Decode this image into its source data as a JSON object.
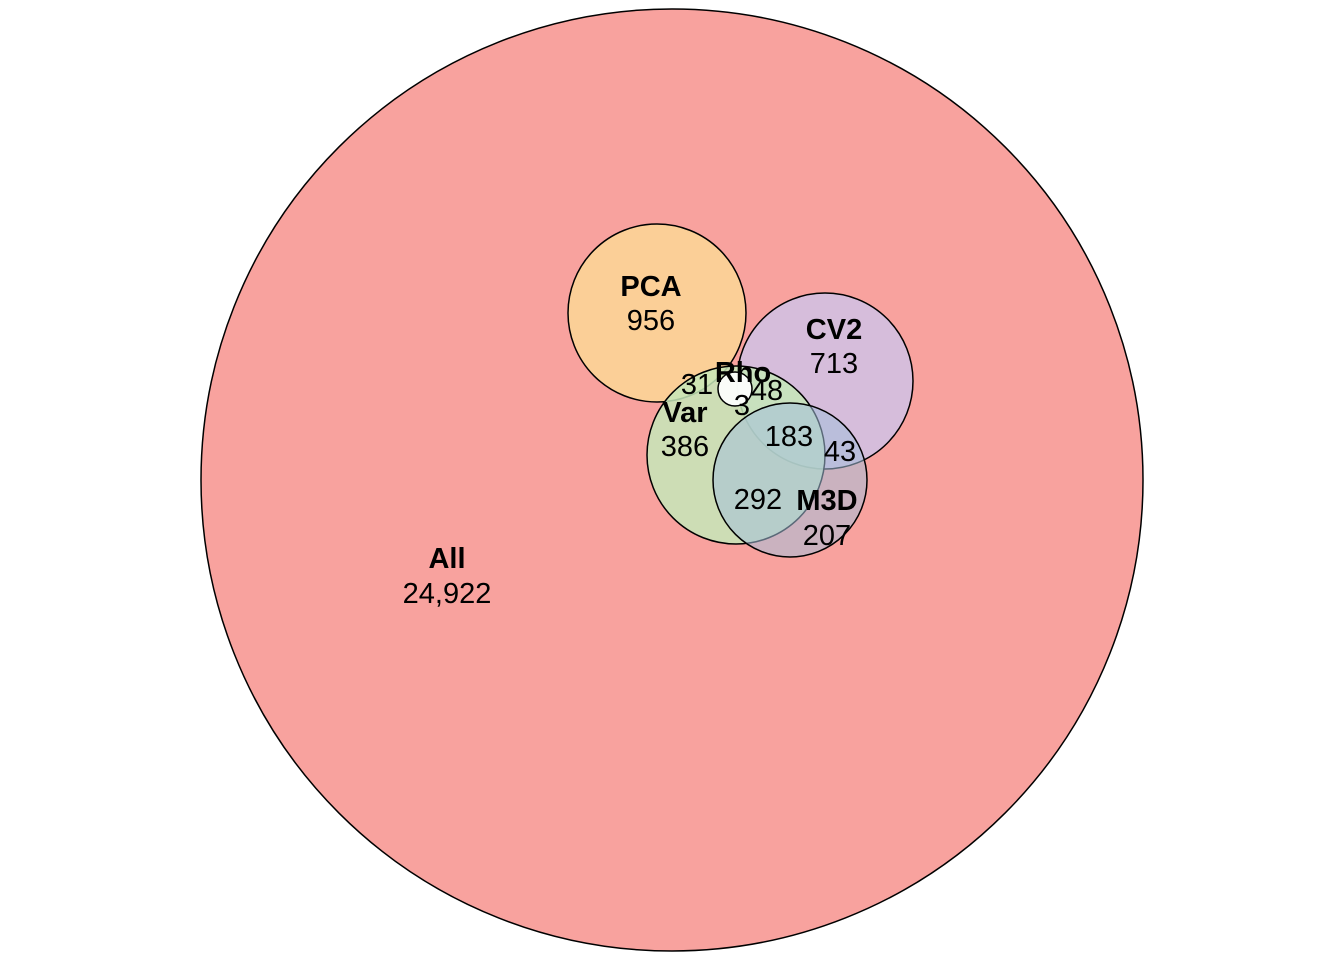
{
  "sets": [
    {
      "id": "all",
      "name": "All",
      "count": "24,922",
      "color": "#F8A29E"
    },
    {
      "id": "pca",
      "name": "PCA",
      "count": "956",
      "color": "#FBCF97"
    },
    {
      "id": "cv2",
      "name": "CV2",
      "count": "713",
      "color": "#D6BDDB"
    },
    {
      "id": "var",
      "name": "Var",
      "count": "386",
      "color": "#C5E7B9"
    },
    {
      "id": "m3d",
      "name": "M3D",
      "count": "207",
      "color": "#A4C0DA"
    },
    {
      "id": "rho",
      "name": "Rho",
      "count": "",
      "color": "#FFFFFF"
    }
  ],
  "intersections": {
    "pca_var": "31",
    "rho_var": "3",
    "cv2_var_rho": "48",
    "cv2_var_m3d": "183",
    "cv2_m3d": "43",
    "var_m3d": "292"
  }
}
